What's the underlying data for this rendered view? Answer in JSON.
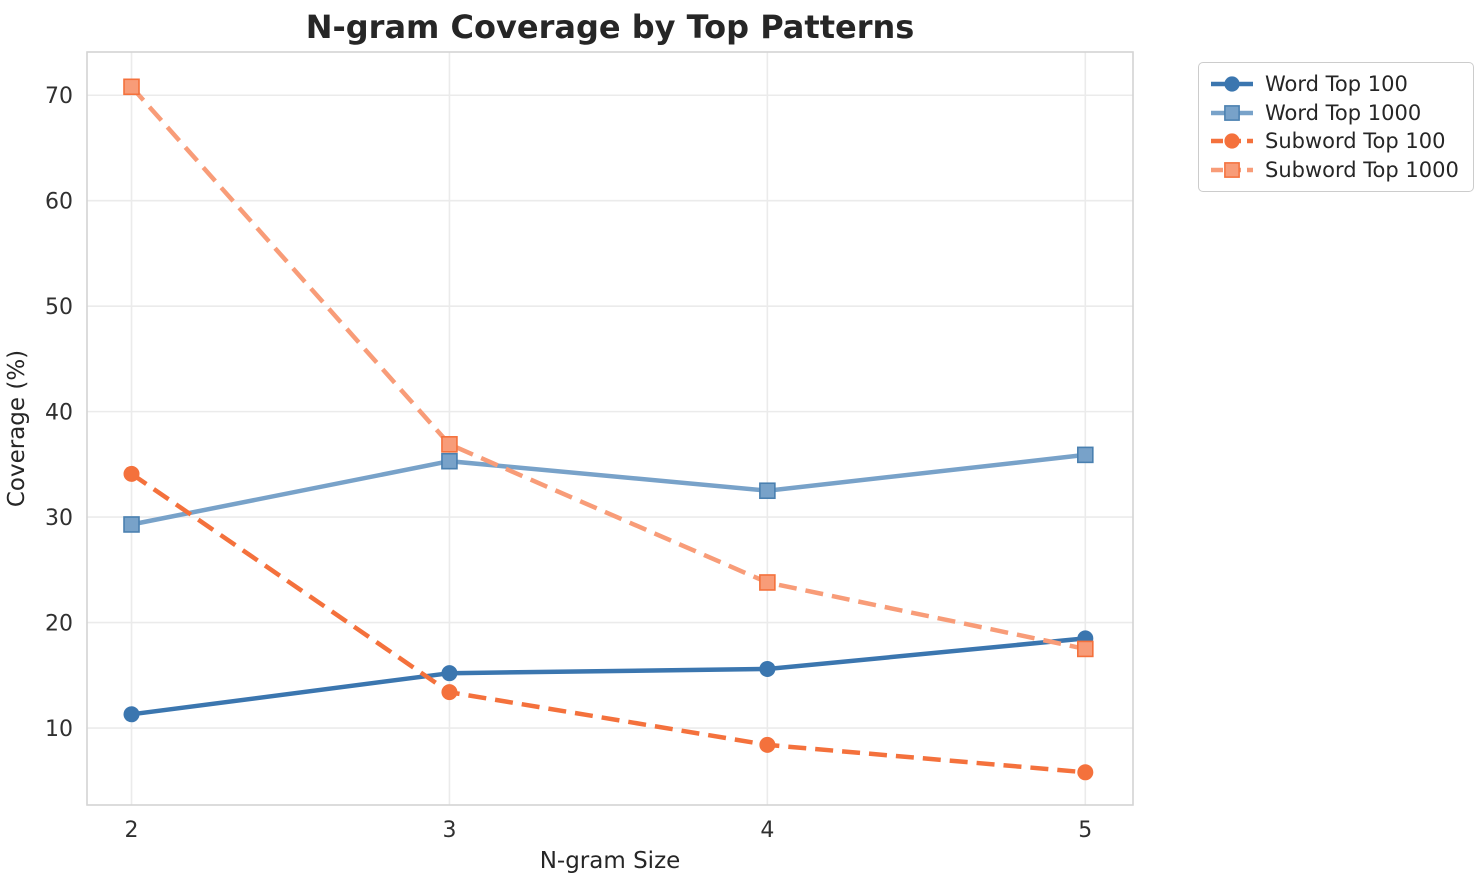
{
  "chart_data": {
    "type": "line",
    "title": "N-gram Coverage by Top Patterns",
    "xlabel": "N-gram Size",
    "ylabel": "Coverage (%)",
    "x": [
      2,
      3,
      4,
      5
    ],
    "xticks": [
      2,
      3,
      4,
      5
    ],
    "yticks": [
      10,
      20,
      30,
      40,
      50,
      60,
      70
    ],
    "xlim": [
      1.86,
      5.15
    ],
    "ylim": [
      2.7,
      74.1
    ],
    "grid": true,
    "legend_position": "outside-top-right",
    "series": [
      {
        "id": "word-top-100",
        "name": "Word Top 100",
        "values": [
          11.3,
          15.2,
          15.6,
          18.5
        ],
        "color": "#3b76af",
        "edge": "#33679a",
        "marker": "circle",
        "dashed": false
      },
      {
        "id": "word-top-1000",
        "name": "Word Top 1000",
        "values": [
          29.3,
          35.3,
          32.5,
          35.9
        ],
        "color": "#78a2c9",
        "edge": "#4a80b0",
        "marker": "square",
        "dashed": false
      },
      {
        "id": "subword-top-100",
        "name": "Subword Top 100",
        "values": [
          34.1,
          13.4,
          8.4,
          5.8
        ],
        "color": "#f4713c",
        "edge": "#e05f2c",
        "marker": "circle",
        "dashed": true
      },
      {
        "id": "subword-top-1000",
        "name": "Subword Top 1000",
        "values": [
          70.8,
          36.9,
          23.8,
          17.5
        ],
        "color": "#f89c78",
        "edge": "#f4713c",
        "marker": "square",
        "dashed": true
      }
    ],
    "colors": {
      "plot_bg": "#ffffff",
      "grid": "#ebebeb",
      "spine": "#d4d4d4",
      "text": "#262626"
    }
  }
}
